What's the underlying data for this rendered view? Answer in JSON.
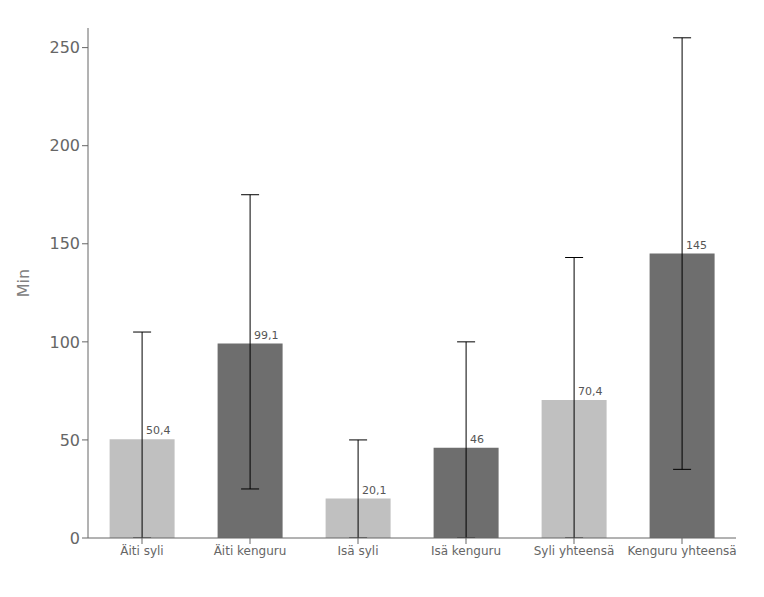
{
  "chart_data": {
    "type": "bar",
    "categories": [
      "Äiti syli",
      "Äiti kenguru",
      "Isä syli",
      "Isä kenguru",
      "Syli yhteensä",
      "Kenguru yhteensä"
    ],
    "values": [
      50.4,
      99.1,
      20.1,
      46,
      70.4,
      145
    ],
    "value_labels": [
      "50,4",
      "99,1",
      "20,1",
      "46",
      "70,4",
      "145"
    ],
    "data_labels": true,
    "colors": [
      "#c0c0c0",
      "#6e6e6e",
      "#c0c0c0",
      "#6e6e6e",
      "#c0c0c0",
      "#6e6e6e"
    ],
    "error_top": [
      105.0,
      175.0,
      50.0,
      100.0,
      143.0,
      255.0
    ],
    "error_bottom": [
      0.0,
      25.0,
      0.0,
      0.0,
      0.0,
      35.0
    ],
    "ylabel": "Min",
    "ylim": [
      0,
      260
    ],
    "yticks": [
      0,
      50,
      100,
      150,
      200,
      250
    ],
    "grid": false
  }
}
